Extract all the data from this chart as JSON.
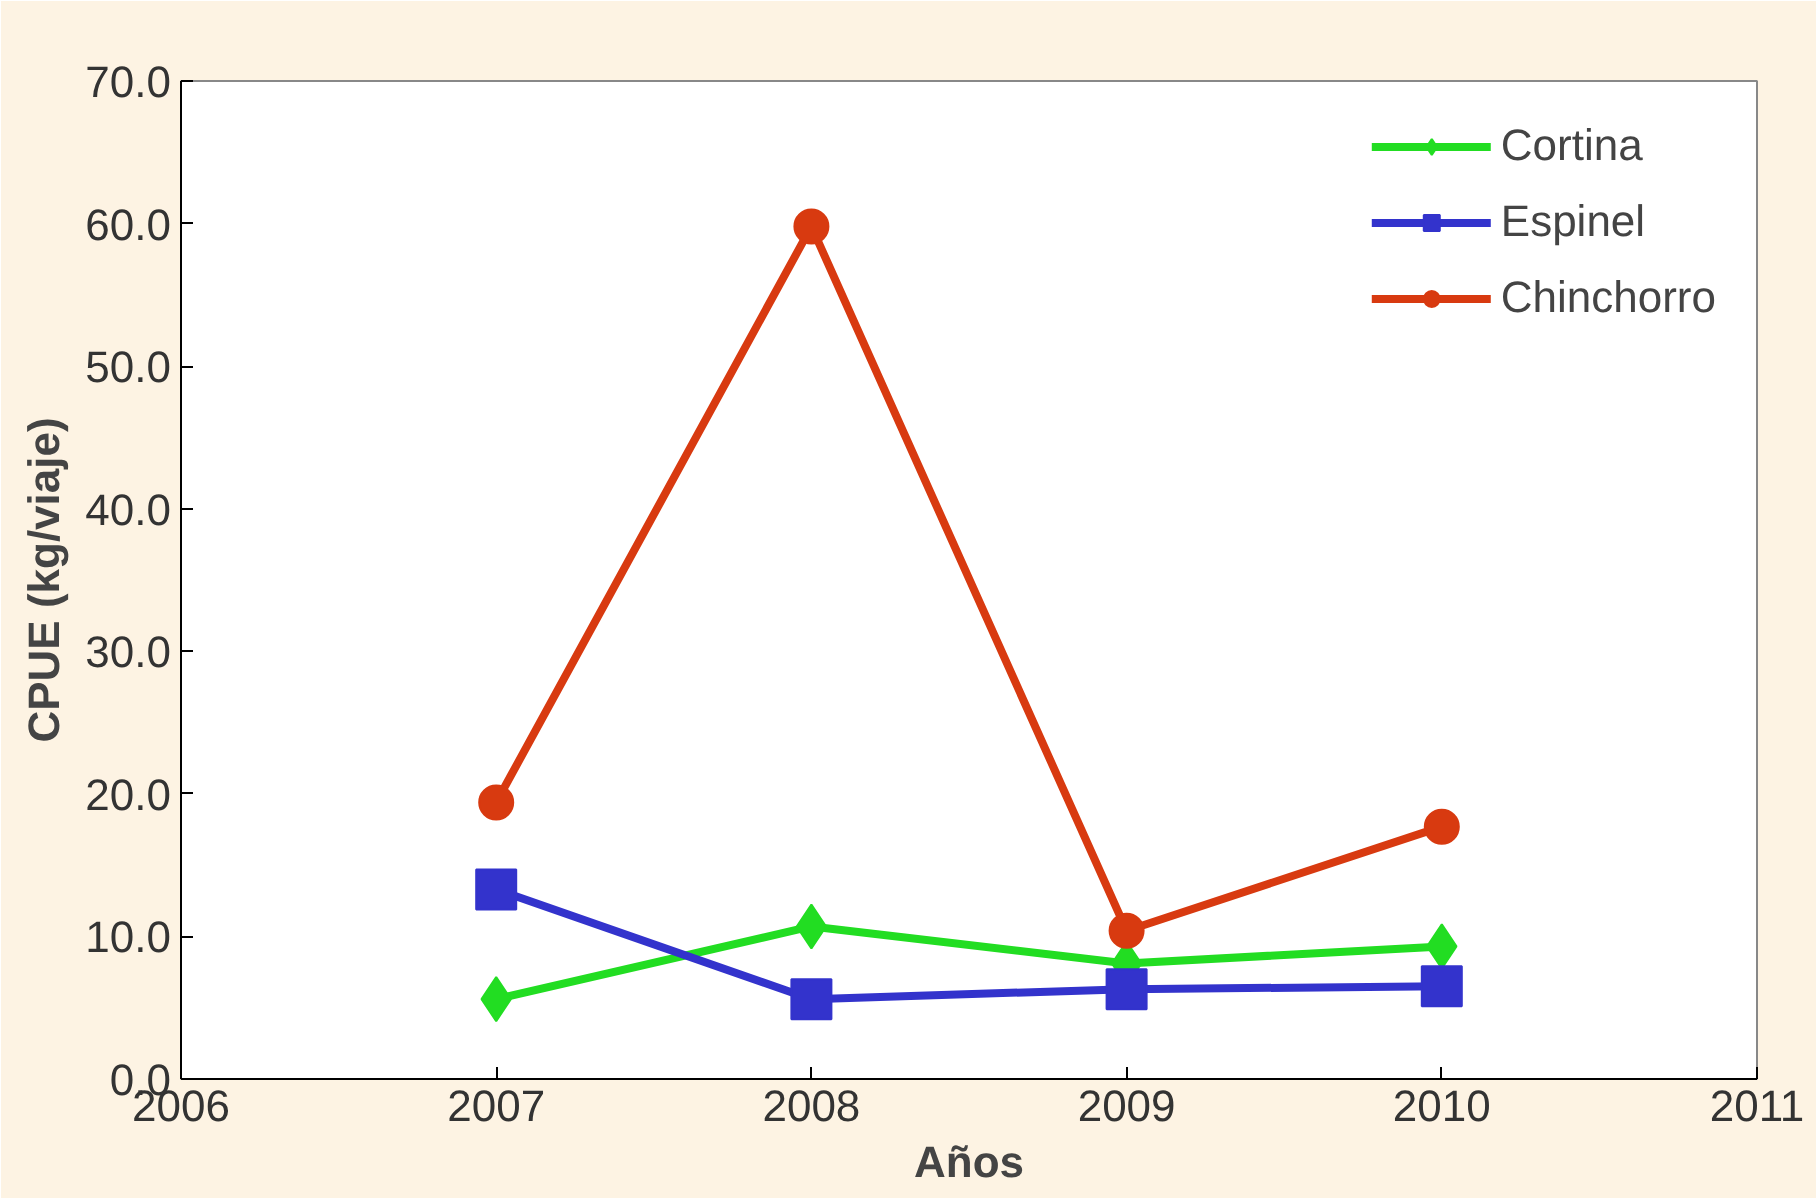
{
  "chart_data": {
    "type": "line",
    "xlabel": "Años",
    "ylabel": "CPUE (kg/viaje)",
    "x": [
      2007,
      2008,
      2009,
      2010
    ],
    "series": [
      {
        "name": "Cortina",
        "color": "#22dd22",
        "marker": "diamond",
        "values": [
          5.6,
          10.7,
          8.1,
          9.3
        ]
      },
      {
        "name": "Espinel",
        "color": "#3333cc",
        "marker": "square",
        "values": [
          13.3,
          5.6,
          6.3,
          6.5
        ]
      },
      {
        "name": "Chinchorro",
        "color": "#d83a10",
        "marker": "circle",
        "values": [
          19.4,
          59.8,
          10.4,
          17.7
        ]
      }
    ],
    "xlim": [
      2006,
      2011
    ],
    "xticks": [
      2006,
      2007,
      2008,
      2009,
      2010,
      2011
    ],
    "ylim": [
      0,
      70
    ],
    "yticks": [
      {
        "value": 0,
        "label": "0.0"
      },
      {
        "value": 10,
        "label": "10.0"
      },
      {
        "value": 20,
        "label": "20.0"
      },
      {
        "value": 30,
        "label": "30.0"
      },
      {
        "value": 40,
        "label": "40.0"
      },
      {
        "value": 50,
        "label": "50.0"
      },
      {
        "value": 60,
        "label": "60.0"
      },
      {
        "value": 70,
        "label": "70.0"
      }
    ],
    "grid": false,
    "legend": "top right",
    "line_style": "solid"
  }
}
